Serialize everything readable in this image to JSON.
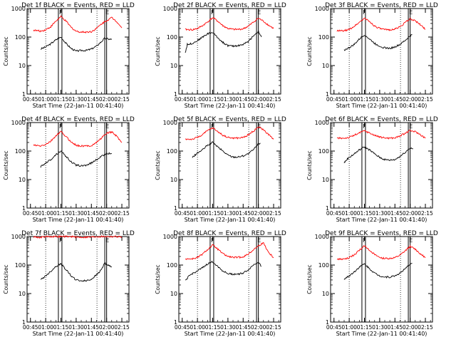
{
  "colors": {
    "events": "#000000",
    "lld": "#ff0000",
    "axes": "#000000"
  },
  "chart_data": [
    {
      "type": "line",
      "title": "Det 1f BLACK = Events, RED = LLD",
      "xlabel": "Start Time (22-Jan-11 00:41:40)",
      "ylabel": "Counts/sec",
      "yscale": "log",
      "ylim": [
        1,
        1000
      ],
      "x_ticks": [
        "00:45",
        "01:00",
        "01:15",
        "01:30",
        "01:45",
        "02:00",
        "02:15"
      ],
      "y_ticks": [
        "1",
        "10",
        "100",
        "1000"
      ],
      "markers": [
        {
          "label": "F"
        },
        {
          "label": "E"
        }
      ],
      "series": [
        {
          "color": "events",
          "x": [
            "00:55",
            "01:00",
            "01:05",
            "01:10",
            "01:15",
            "01:20",
            "01:25",
            "01:30",
            "01:35",
            "01:40",
            "01:45",
            "01:50",
            "01:55",
            "01:58",
            "02:02",
            "02:05"
          ],
          "values": [
            38,
            45,
            58,
            80,
            100,
            60,
            40,
            32,
            34,
            34,
            38,
            48,
            70,
            90,
            85,
            82
          ]
        },
        {
          "color": "lld",
          "x": [
            "00:48",
            "00:55",
            "01:00",
            "01:05",
            "01:10",
            "01:15",
            "01:20",
            "01:25",
            "01:30",
            "01:35",
            "01:40",
            "01:45",
            "01:50",
            "01:55",
            "02:00",
            "02:05",
            "02:10",
            "02:15"
          ],
          "values": [
            175,
            160,
            180,
            230,
            360,
            520,
            360,
            220,
            160,
            150,
            150,
            155,
            200,
            290,
            380,
            480,
            350,
            210
          ]
        }
      ]
    },
    {
      "type": "line",
      "title": "Det 2f BLACK = Events, RED = LLD",
      "xlabel": "Start Time (22-Jan-11 00:41:40)",
      "ylabel": "Counts/sec",
      "yscale": "log",
      "ylim": [
        1,
        1000
      ],
      "x_ticks": [
        "00:45",
        "01:00",
        "01:15",
        "01:30",
        "01:45",
        "02:00",
        "02:15"
      ],
      "y_ticks": [
        "1",
        "10",
        "100",
        "1000"
      ],
      "markers": [
        {
          "label": "F"
        },
        {
          "label": "E"
        }
      ],
      "series": [
        {
          "color": "events",
          "x": [
            "00:48",
            "00:50",
            "00:55",
            "01:00",
            "01:05",
            "01:10",
            "01:15",
            "01:20",
            "01:25",
            "01:30",
            "01:35",
            "01:40",
            "01:45",
            "01:50",
            "01:55",
            "02:00",
            "02:03"
          ],
          "values": [
            28,
            55,
            60,
            75,
            100,
            130,
            145,
            95,
            65,
            50,
            48,
            50,
            55,
            70,
            110,
            160,
            100
          ]
        },
        {
          "color": "lld",
          "x": [
            "00:48",
            "00:55",
            "01:00",
            "01:05",
            "01:10",
            "01:15",
            "01:20",
            "01:25",
            "01:30",
            "01:35",
            "01:40",
            "01:45",
            "01:50",
            "01:55",
            "02:00",
            "02:05",
            "02:10",
            "02:15"
          ],
          "values": [
            185,
            180,
            200,
            250,
            340,
            480,
            360,
            250,
            200,
            185,
            185,
            195,
            240,
            330,
            460,
            360,
            260,
            200
          ]
        }
      ]
    },
    {
      "type": "line",
      "title": "Det 3f BLACK = Events, RED = LLD",
      "xlabel": "Start Time (22-Jan-11 00:41:40)",
      "ylabel": "Counts/sec",
      "yscale": "log",
      "ylim": [
        1,
        1000
      ],
      "x_ticks": [
        "00:45",
        "01:00",
        "01:15",
        "01:30",
        "01:45",
        "02:00",
        "02:15"
      ],
      "y_ticks": [
        "1",
        "10",
        "100",
        "1000"
      ],
      "markers": [
        {
          "label": "F"
        },
        {
          "label": "E"
        }
      ],
      "series": [
        {
          "color": "events",
          "x": [
            "00:55",
            "01:00",
            "01:05",
            "01:10",
            "01:15",
            "01:20",
            "01:25",
            "01:30",
            "01:35",
            "01:40",
            "01:45",
            "01:50",
            "01:55",
            "02:00",
            "02:02"
          ],
          "values": [
            35,
            42,
            55,
            85,
            120,
            85,
            60,
            48,
            42,
            40,
            45,
            55,
            75,
            110,
            120
          ]
        },
        {
          "color": "lld",
          "x": [
            "00:48",
            "00:55",
            "01:00",
            "01:05",
            "01:10",
            "01:15",
            "01:20",
            "01:25",
            "01:30",
            "01:35",
            "01:40",
            "01:45",
            "01:50",
            "01:55",
            "02:00",
            "02:05",
            "02:10",
            "02:15"
          ],
          "values": [
            165,
            165,
            185,
            240,
            330,
            460,
            350,
            245,
            200,
            180,
            180,
            190,
            230,
            320,
            440,
            370,
            270,
            190
          ]
        }
      ]
    },
    {
      "type": "line",
      "title": "Det 4f BLACK = Events, RED = LLD",
      "xlabel": "Start Time (22-Jan-11 00:41:40)",
      "ylabel": "Counts/sec",
      "yscale": "log",
      "ylim": [
        1,
        1000
      ],
      "x_ticks": [
        "00:45",
        "01:00",
        "01:15",
        "01:30",
        "01:45",
        "02:00",
        "02:15"
      ],
      "y_ticks": [
        "1",
        "10",
        "100",
        "1000"
      ],
      "markers": [
        {
          "label": "F"
        },
        {
          "label": "E"
        }
      ],
      "series": [
        {
          "color": "events",
          "x": [
            "00:55",
            "01:00",
            "01:05",
            "01:10",
            "01:15",
            "01:20",
            "01:25",
            "01:30",
            "01:35",
            "01:40",
            "01:45",
            "01:50",
            "01:55",
            "02:00",
            "02:05"
          ],
          "values": [
            28,
            38,
            50,
            75,
            100,
            65,
            42,
            32,
            30,
            32,
            38,
            50,
            65,
            85,
            80
          ]
        },
        {
          "color": "lld",
          "x": [
            "00:48",
            "00:55",
            "01:00",
            "01:05",
            "01:10",
            "01:15",
            "01:20",
            "01:25",
            "01:30",
            "01:35",
            "01:40",
            "01:45",
            "01:50",
            "01:55",
            "02:00",
            "02:05",
            "02:10",
            "02:15"
          ],
          "values": [
            160,
            150,
            170,
            220,
            340,
            480,
            320,
            210,
            160,
            150,
            150,
            155,
            200,
            290,
            420,
            470,
            330,
            200
          ]
        }
      ]
    },
    {
      "type": "line",
      "title": "Det 5f BLACK = Events, RED = LLD",
      "xlabel": "Start Time (22-Jan-11 00:41:40)",
      "ylabel": "Counts/sec",
      "yscale": "log",
      "ylim": [
        1,
        1000
      ],
      "x_ticks": [
        "00:45",
        "01:00",
        "01:15",
        "01:30",
        "01:45",
        "02:00",
        "02:15"
      ],
      "y_ticks": [
        "1",
        "10",
        "100",
        "1000"
      ],
      "markers": [
        {
          "label": "F"
        },
        {
          "label": "E"
        }
      ],
      "series": [
        {
          "color": "events",
          "x": [
            "00:55",
            "01:00",
            "01:05",
            "01:10",
            "01:15",
            "01:20",
            "01:25",
            "01:30",
            "01:35",
            "01:40",
            "01:45",
            "01:50",
            "01:55",
            "02:00",
            "02:02"
          ],
          "values": [
            60,
            85,
            110,
            160,
            200,
            140,
            100,
            72,
            62,
            62,
            68,
            80,
            110,
            180,
            190
          ]
        },
        {
          "color": "lld",
          "x": [
            "00:48",
            "00:55",
            "01:00",
            "01:05",
            "01:10",
            "01:15",
            "01:20",
            "01:25",
            "01:30",
            "01:35",
            "01:40",
            "01:45",
            "01:50",
            "01:55",
            "02:00",
            "02:05",
            "02:10",
            "02:15"
          ],
          "values": [
            260,
            260,
            300,
            380,
            520,
            650,
            480,
            360,
            300,
            285,
            285,
            300,
            370,
            500,
            700,
            560,
            380,
            260
          ]
        }
      ]
    },
    {
      "type": "line",
      "title": "Det 6f BLACK = Events, RED = LLD",
      "xlabel": "Start Time (22-Jan-11 00:41:40)",
      "ylabel": "Counts/sec",
      "yscale": "log",
      "ylim": [
        1,
        1000
      ],
      "x_ticks": [
        "00:45",
        "01:00",
        "01:15",
        "01:30",
        "01:45",
        "02:00",
        "02:15"
      ],
      "y_ticks": [
        "1",
        "10",
        "100",
        "1000"
      ],
      "markers": [
        {
          "label": "F"
        },
        {
          "label": "E"
        }
      ],
      "series": [
        {
          "color": "events",
          "x": [
            "00:55",
            "00:57",
            "01:00",
            "01:05",
            "01:10",
            "01:15",
            "01:20",
            "01:25",
            "01:30",
            "01:35",
            "01:40",
            "01:45",
            "01:50",
            "01:55",
            "02:00",
            "02:03"
          ],
          "values": [
            38,
            48,
            60,
            80,
            110,
            140,
            110,
            80,
            60,
            50,
            48,
            50,
            65,
            90,
            130,
            120
          ]
        },
        {
          "color": "lld",
          "x": [
            "00:48",
            "00:55",
            "01:00",
            "01:05",
            "01:10",
            "01:15",
            "01:20",
            "01:25",
            "01:30",
            "01:35",
            "01:40",
            "01:45",
            "01:50",
            "01:55",
            "02:00",
            "02:05",
            "02:10",
            "02:15"
          ],
          "values": [
            280,
            285,
            300,
            360,
            430,
            520,
            430,
            360,
            310,
            290,
            285,
            290,
            340,
            420,
            520,
            480,
            380,
            280
          ]
        }
      ]
    },
    {
      "type": "line",
      "title": "Det 7f BLACK = Events, RED = LLD",
      "xlabel": "Start Time (22-Jan-11 00:41:40)",
      "ylabel": "Counts/sec",
      "yscale": "log",
      "ylim": [
        1,
        1000
      ],
      "x_ticks": [
        "00:45",
        "01:00",
        "01:15",
        "01:30",
        "01:45",
        "02:00",
        "02:15"
      ],
      "y_ticks": [
        "1",
        "10",
        "100",
        "1000"
      ],
      "markers": [
        {
          "label": "F"
        },
        {
          "label": "E"
        }
      ],
      "series": [
        {
          "color": "events",
          "x": [
            "00:55",
            "01:00",
            "01:05",
            "01:10",
            "01:15",
            "01:20",
            "01:25",
            "01:30",
            "01:35",
            "01:40",
            "01:45",
            "01:50",
            "01:55",
            "01:58",
            "02:02",
            "02:05"
          ],
          "values": [
            30,
            42,
            60,
            90,
            110,
            70,
            42,
            30,
            28,
            28,
            32,
            45,
            70,
            120,
            95,
            85
          ]
        },
        {
          "color": "lld",
          "x": [
            "00:48",
            "00:55",
            "01:00",
            "01:05",
            "01:10",
            "01:15",
            "01:20",
            "01:25",
            "01:30",
            "01:35",
            "01:40",
            "01:45",
            "01:50",
            "01:55",
            "02:00",
            "02:05",
            "02:10",
            "02:15"
          ],
          "values": [
            980,
            930,
            1000,
            1000,
            1000,
            1000,
            1000,
            1000,
            960,
            950,
            950,
            960,
            1000,
            1000,
            1000,
            1000,
            1000,
            980
          ]
        }
      ]
    },
    {
      "type": "line",
      "title": "Det 8f BLACK = Events, RED = LLD",
      "xlabel": "Start Time (22-Jan-11 00:41:40)",
      "ylabel": "Counts/sec",
      "yscale": "log",
      "ylim": [
        1,
        1000
      ],
      "x_ticks": [
        "00:45",
        "01:00",
        "01:15",
        "01:30",
        "01:45",
        "02:00",
        "02:15"
      ],
      "y_ticks": [
        "1",
        "10",
        "100",
        "1000"
      ],
      "markers": [
        {
          "label": "F"
        },
        {
          "label": "E"
        }
      ],
      "series": [
        {
          "color": "events",
          "x": [
            "00:48",
            "00:52",
            "00:55",
            "01:00",
            "01:05",
            "01:10",
            "01:15",
            "01:20",
            "01:25",
            "01:30",
            "01:35",
            "01:40",
            "01:45",
            "01:50",
            "01:55",
            "02:00",
            "02:03"
          ],
          "values": [
            28,
            42,
            50,
            62,
            80,
            110,
            130,
            90,
            62,
            50,
            48,
            48,
            52,
            68,
            100,
            130,
            90
          ]
        },
        {
          "color": "lld",
          "x": [
            "00:48",
            "00:55",
            "01:00",
            "01:05",
            "01:10",
            "01:15",
            "01:20",
            "01:25",
            "01:30",
            "01:35",
            "01:40",
            "01:45",
            "01:50",
            "01:55",
            "02:00",
            "02:05",
            "02:10",
            "02:15"
          ],
          "values": [
            165,
            165,
            185,
            240,
            350,
            500,
            360,
            250,
            200,
            185,
            185,
            195,
            240,
            340,
            470,
            600,
            280,
            180
          ]
        }
      ]
    },
    {
      "type": "line",
      "title": "Det 9f BLACK = Events, RED = LLD",
      "xlabel": "Start Time (22-Jan-11 00:41:40)",
      "ylabel": "Counts/sec",
      "yscale": "log",
      "ylim": [
        1,
        1000
      ],
      "x_ticks": [
        "00:45",
        "01:00",
        "01:15",
        "01:30",
        "01:45",
        "02:00",
        "02:15"
      ],
      "y_ticks": [
        "1",
        "10",
        "100",
        "1000"
      ],
      "markers": [
        {
          "label": "F"
        },
        {
          "label": "E"
        }
      ],
      "series": [
        {
          "color": "events",
          "x": [
            "00:55",
            "01:00",
            "01:05",
            "01:10",
            "01:15",
            "01:20",
            "01:25",
            "01:30",
            "01:35",
            "01:40",
            "01:45",
            "01:50",
            "01:55",
            "02:00",
            "02:02"
          ],
          "values": [
            32,
            42,
            58,
            85,
            110,
            75,
            52,
            42,
            38,
            38,
            42,
            52,
            72,
            110,
            115
          ]
        },
        {
          "color": "lld",
          "x": [
            "00:48",
            "00:55",
            "01:00",
            "01:05",
            "01:10",
            "01:15",
            "01:20",
            "01:25",
            "01:30",
            "01:35",
            "01:40",
            "01:45",
            "01:50",
            "01:55",
            "02:00",
            "02:05",
            "02:10",
            "02:15"
          ],
          "values": [
            160,
            160,
            180,
            230,
            330,
            470,
            340,
            230,
            185,
            170,
            170,
            180,
            220,
            310,
            450,
            360,
            250,
            180
          ]
        }
      ]
    }
  ]
}
